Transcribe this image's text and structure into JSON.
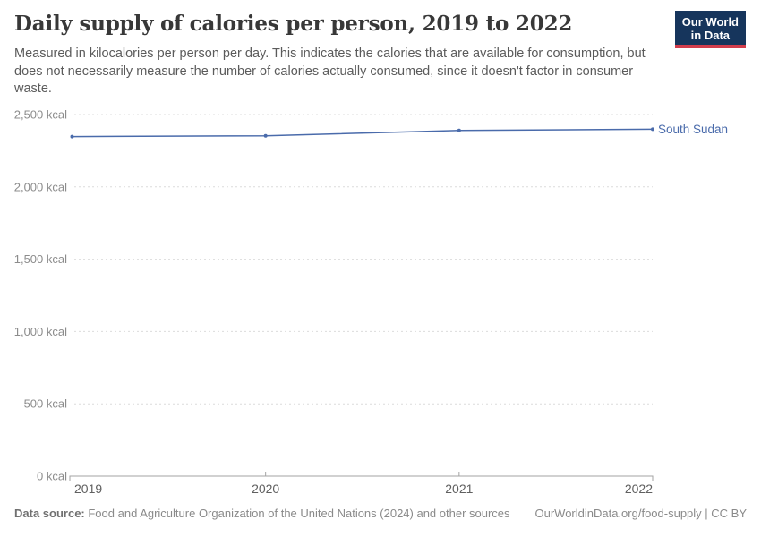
{
  "header": {
    "title": "Daily supply of calories per person, 2019 to 2022",
    "subtitle": "Measured in kilocalories per person per day. This indicates the calories that are available for consumption, but does not necessarily measure the number of calories actually consumed, since it doesn't factor in consumer waste.",
    "logo": {
      "line1": "Our World",
      "line2": "in Data",
      "bg_color": "#16355c",
      "accent_color": "#d23d4c"
    }
  },
  "chart_data": {
    "type": "line",
    "title": "Daily supply of calories per person, 2019 to 2022",
    "x": [
      2019,
      2020,
      2021,
      2022
    ],
    "xtick_labels": [
      "2019",
      "2020",
      "2021",
      "2022"
    ],
    "series": [
      {
        "name": "South Sudan",
        "values": [
          2348,
          2353,
          2390,
          2399
        ],
        "color": "#4a6bab"
      }
    ],
    "xlabel": "",
    "ylabel": "",
    "unit": "kcal",
    "ylim": [
      0,
      2500
    ],
    "yticks": [
      0,
      500,
      1000,
      1500,
      2000,
      2500
    ],
    "ytick_labels": [
      "0 kcal",
      "500 kcal",
      "1,000 kcal",
      "1,500 kcal",
      "2,000 kcal",
      "2,500 kcal"
    ],
    "grid": "horizontal-dashed",
    "legend_position": "end-of-line-label"
  },
  "footer": {
    "data_source_label": "Data source:",
    "data_source_text": " Food and Agriculture Organization of the United Nations (2024) and other sources",
    "link_text": "OurWorldinData.org/food-supply | CC BY"
  },
  "colors": {
    "grid": "#dcdcdc",
    "axis": "#a3a3a3",
    "ytick_text": "#8c8c8c",
    "xtick_text": "#606060",
    "title_text": "#383838",
    "subtitle_text": "#5b5b5b",
    "footer_text": "#8a8a8a"
  }
}
